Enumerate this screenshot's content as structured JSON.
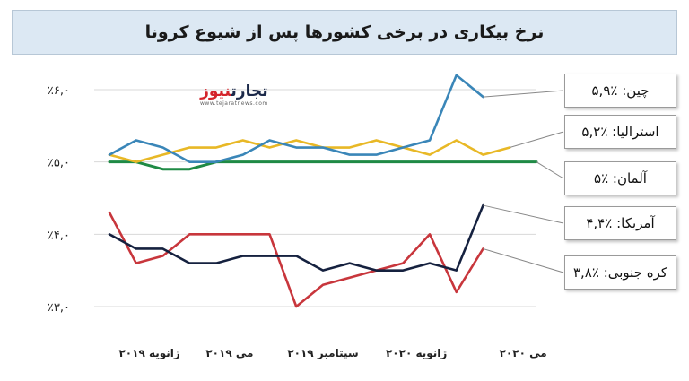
{
  "title": "نرخ بیکاری در برخی کشورها پس از شیوع کرونا",
  "logo": {
    "brand_part1": "تجارت",
    "brand_part2": "نیوز",
    "url": "www.tejaratnews.com"
  },
  "chart_data": {
    "type": "line",
    "title": "نرخ بیکاری در برخی کشورها پس از شیوع کرونا",
    "ylim": [
      3.0,
      6.0
    ],
    "y_ticks": [
      {
        "value": 3.0,
        "label": "٪۳,۰"
      },
      {
        "value": 4.0,
        "label": "٪۴,۰"
      },
      {
        "value": 5.0,
        "label": "٪۵,۰"
      },
      {
        "value": 6.0,
        "label": "٪۶,۰"
      }
    ],
    "x_count": 17,
    "x_ticks": [
      {
        "index": 1.5,
        "label": "ژانویه ۲۰۱۹"
      },
      {
        "index": 4.5,
        "label": "می ۲۰۱۹"
      },
      {
        "index": 8,
        "label": "سپتامبر ۲۰۱۹"
      },
      {
        "index": 11.5,
        "label": "ژانویه ۲۰۲۰"
      },
      {
        "index": 15.5,
        "label": "می ۲۰۲۰"
      }
    ],
    "series": [
      {
        "key": "germany",
        "color": "#1f8a45",
        "values": [
          5.0,
          5.0,
          4.9,
          4.9,
          5.0,
          5.0,
          5.0,
          5.0,
          5.0,
          5.0,
          5.0,
          5.0,
          5.0,
          5.0,
          5.0,
          5.0,
          5.0
        ]
      },
      {
        "key": "australia",
        "color": "#e8b826",
        "values": [
          5.1,
          5.0,
          5.1,
          5.2,
          5.2,
          5.3,
          5.2,
          5.3,
          5.2,
          5.2,
          5.3,
          5.2,
          5.1,
          5.3,
          5.1,
          5.2,
          null
        ]
      },
      {
        "key": "china",
        "color": "#3a86b8",
        "values": [
          5.1,
          5.3,
          5.2,
          5.0,
          5.0,
          5.1,
          5.3,
          5.2,
          5.2,
          5.1,
          5.1,
          5.2,
          5.3,
          6.2,
          5.9,
          null,
          null
        ]
      },
      {
        "key": "korea",
        "color": "#c8363c",
        "values": [
          4.3,
          3.6,
          3.7,
          4.0,
          4.0,
          4.0,
          4.0,
          3.0,
          3.3,
          3.4,
          3.5,
          3.6,
          4.0,
          3.2,
          3.8,
          null,
          null
        ]
      },
      {
        "key": "usa",
        "color": "#15213f",
        "values": [
          4.0,
          3.8,
          3.8,
          3.6,
          3.6,
          3.7,
          3.7,
          3.7,
          3.5,
          3.6,
          3.5,
          3.5,
          3.6,
          3.5,
          4.4,
          null,
          null
        ]
      }
    ],
    "annotations": [
      {
        "series": "china",
        "text": "چین: ٪۵,۹"
      },
      {
        "series": "australia",
        "text": "استرالیا: ٪۵,۲"
      },
      {
        "series": "germany",
        "text": "آلمان: ٪۵"
      },
      {
        "series": "usa",
        "text": "آمریکا: ٪۴,۴"
      },
      {
        "series": "korea",
        "text": "کره جنوبی: ٪۳,۸"
      }
    ]
  }
}
